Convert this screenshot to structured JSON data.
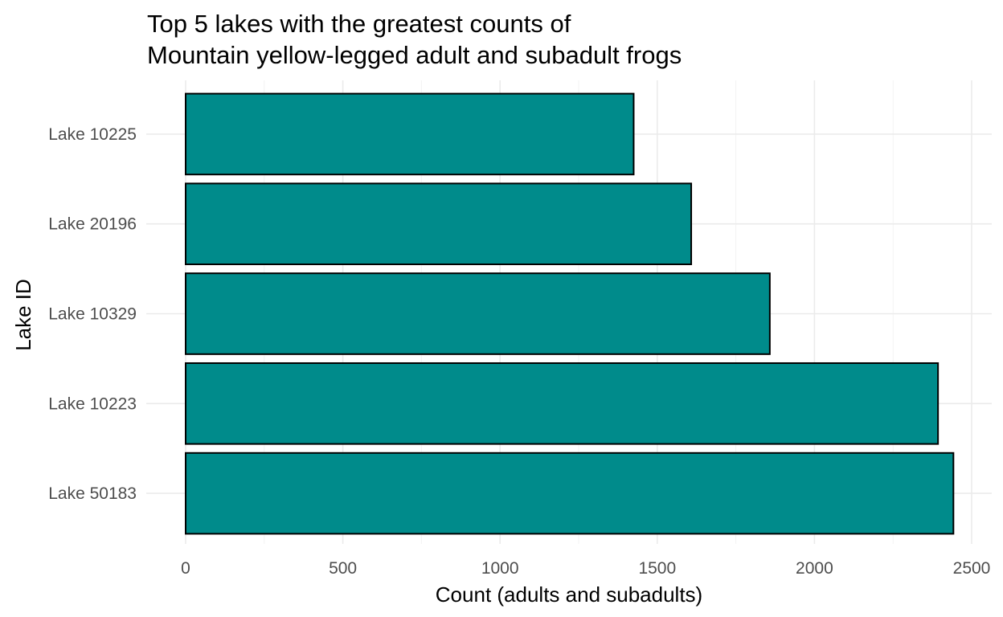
{
  "chart_data": {
    "type": "bar",
    "orientation": "horizontal",
    "title_lines": [
      "Top 5 lakes with the greatest counts of",
      "Mountain yellow-legged adult and subadult frogs"
    ],
    "xlabel": "Count (adults and subadults)",
    "ylabel": "Lake ID",
    "categories": [
      "Lake 10225",
      "Lake 20196",
      "Lake 10329",
      "Lake 10223",
      "Lake 50183"
    ],
    "values": [
      1425,
      1608,
      1858,
      2393,
      2442
    ],
    "x_ticks": [
      "0",
      "500",
      "1000",
      "1500",
      "2000",
      "2500"
    ],
    "xlim": [
      0,
      2550
    ],
    "grid": true,
    "legend": "none",
    "bar_color": "#008b8b",
    "bar_outline": "#000000"
  }
}
